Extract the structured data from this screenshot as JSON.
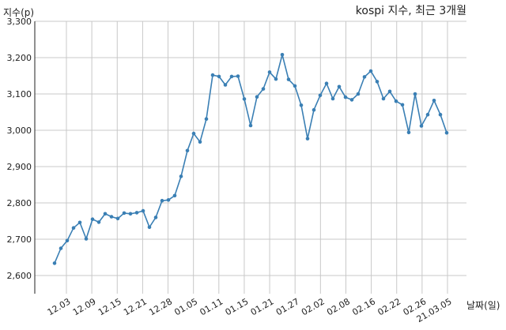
{
  "chart_data": {
    "type": "line",
    "title": "kospi 지수, 최근 3개월",
    "xlabel": "날짜(일)",
    "ylabel": "지수(p)",
    "ylim": [
      2550,
      3300
    ],
    "yticks": [
      "2,600",
      "2,700",
      "2,800",
      "2,900",
      "3,000",
      "3,100",
      "3,200",
      "3,300"
    ],
    "xticks": [
      "12.03",
      "12.09",
      "12.15",
      "12.21",
      "12.28",
      "01.05",
      "01.11",
      "01.15",
      "01.21",
      "01.27",
      "02.02",
      "02.08",
      "02.16",
      "02.22",
      "02.26",
      "21.03.05"
    ],
    "grid": true,
    "colors": {
      "line": "#3a7fb4",
      "grid": "#c8c8c8",
      "axis": "#222222"
    },
    "series": [
      {
        "values": [
          2634,
          2675,
          2696,
          2731,
          2746,
          2701,
          2755,
          2747,
          2770,
          2762,
          2757,
          2772,
          2770,
          2773,
          2778,
          2733,
          2760,
          2806,
          2808,
          2820,
          2873,
          2944,
          2991,
          2968,
          3031,
          3152,
          3148,
          3125,
          3148,
          3149,
          3086,
          3013,
          3092,
          3114,
          3160,
          3141,
          3208,
          3140,
          3122,
          3069,
          2977,
          3056,
          3096,
          3129,
          3087,
          3120,
          3091,
          3084,
          3100,
          3147,
          3163,
          3134,
          3087,
          3107,
          3080,
          3070,
          2994,
          3100,
          3012,
          3043,
          3082,
          3043,
          2993
        ]
      }
    ]
  }
}
